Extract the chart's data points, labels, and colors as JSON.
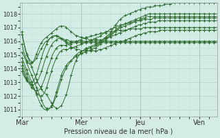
{
  "xlabel": "Pression niveau de la mer( hPa )",
  "bg_color": "#d4ece6",
  "grid_color": "#b0d4cc",
  "line_color": "#2d6b2d",
  "marker": "+",
  "ylim": [
    1010.5,
    1018.8
  ],
  "yticks": [
    1011,
    1012,
    1013,
    1014,
    1015,
    1016,
    1017,
    1018
  ],
  "day_labels": [
    "Mar",
    "Mer",
    "Jeu",
    "Ven"
  ],
  "day_positions": [
    0,
    36,
    72,
    108
  ],
  "n_points": 120,
  "lines": [
    [
      1016.7,
      1016.0,
      1015.4,
      1015.0,
      1014.7,
      1014.4,
      1014.1,
      1013.8,
      1013.5,
      1013.2,
      1012.9,
      1012.7,
      1012.5,
      1012.3,
      1012.2,
      1012.1,
      1011.9,
      1011.7,
      1011.5,
      1011.3,
      1011.2,
      1011.1,
      1011.1,
      1011.2,
      1011.3,
      1011.5,
      1011.8,
      1012.1,
      1012.5,
      1013.0,
      1013.5,
      1013.9,
      1014.3,
      1014.6,
      1014.8,
      1015.0,
      1015.2,
      1015.3,
      1015.4,
      1015.5,
      1015.5,
      1015.6,
      1015.6,
      1015.7,
      1015.7,
      1015.8,
      1015.8,
      1015.9,
      1016.0,
      1016.1,
      1016.2,
      1016.3,
      1016.4,
      1016.5,
      1016.6,
      1016.8,
      1017.0,
      1017.2,
      1017.3,
      1017.5,
      1017.6,
      1017.7,
      1017.8,
      1017.9,
      1017.9,
      1018.0,
      1018.0,
      1018.1,
      1018.1,
      1018.2,
      1018.2,
      1018.3,
      1018.3,
      1018.4,
      1018.4,
      1018.4,
      1018.5,
      1018.5,
      1018.5,
      1018.5,
      1018.5,
      1018.6,
      1018.6,
      1018.6,
      1018.6,
      1018.6,
      1018.6,
      1018.7,
      1018.7,
      1018.7,
      1018.7,
      1018.7,
      1018.8,
      1018.8,
      1018.8,
      1018.8,
      1018.8,
      1018.8,
      1018.8,
      1018.8,
      1018.8,
      1018.8,
      1018.8,
      1018.8,
      1018.8,
      1018.8,
      1018.8,
      1018.8,
      1018.8,
      1018.8,
      1018.8,
      1018.8,
      1018.8,
      1018.8,
      1018.8,
      1018.8,
      1018.8,
      1018.8,
      1018.8,
      1018.8
    ],
    [
      1015.2,
      1015.0,
      1014.7,
      1014.4,
      1014.1,
      1013.8,
      1013.5,
      1013.2,
      1012.9,
      1012.6,
      1012.3,
      1012.0,
      1011.7,
      1011.4,
      1011.2,
      1011.1,
      1011.1,
      1011.1,
      1011.2,
      1011.4,
      1011.7,
      1012.0,
      1012.4,
      1012.8,
      1013.2,
      1013.5,
      1013.8,
      1014.0,
      1014.2,
      1014.4,
      1014.6,
      1014.7,
      1014.9,
      1015.0,
      1015.1,
      1015.2,
      1015.2,
      1015.3,
      1015.3,
      1015.4,
      1015.4,
      1015.5,
      1015.5,
      1015.6,
      1015.6,
      1015.7,
      1015.7,
      1015.8,
      1015.9,
      1016.0,
      1016.1,
      1016.2,
      1016.3,
      1016.4,
      1016.5,
      1016.6,
      1016.7,
      1016.8,
      1016.9,
      1017.0,
      1017.1,
      1017.2,
      1017.2,
      1017.3,
      1017.3,
      1017.4,
      1017.4,
      1017.5,
      1017.5,
      1017.6,
      1017.6,
      1017.7,
      1017.7,
      1017.8,
      1017.8,
      1017.9,
      1017.9,
      1018.0,
      1018.0,
      1018.0,
      1018.0,
      1018.0,
      1018.0,
      1018.0,
      1018.0,
      1018.0,
      1018.0,
      1018.0,
      1018.0,
      1018.0,
      1018.0,
      1018.0,
      1018.0,
      1018.0,
      1018.0,
      1018.0,
      1018.0,
      1018.0,
      1018.0,
      1018.0,
      1018.0,
      1018.0,
      1018.0,
      1018.0,
      1018.0,
      1018.0,
      1018.0,
      1018.0,
      1018.0,
      1018.0,
      1018.0,
      1018.0,
      1018.0,
      1018.0,
      1018.0,
      1018.0,
      1018.0,
      1018.0,
      1018.0,
      1018.0
    ],
    [
      1014.8,
      1014.5,
      1014.2,
      1013.9,
      1013.6,
      1013.3,
      1013.0,
      1012.7,
      1012.4,
      1012.1,
      1011.8,
      1011.5,
      1011.3,
      1011.1,
      1011.0,
      1011.0,
      1011.0,
      1011.1,
      1011.3,
      1011.5,
      1011.9,
      1012.3,
      1012.7,
      1013.1,
      1013.5,
      1013.8,
      1014.0,
      1014.2,
      1014.4,
      1014.5,
      1014.6,
      1014.7,
      1014.8,
      1014.9,
      1015.0,
      1015.0,
      1015.1,
      1015.1,
      1015.2,
      1015.2,
      1015.3,
      1015.3,
      1015.4,
      1015.4,
      1015.5,
      1015.5,
      1015.6,
      1015.7,
      1015.8,
      1015.9,
      1016.0,
      1016.1,
      1016.2,
      1016.3,
      1016.4,
      1016.5,
      1016.6,
      1016.7,
      1016.8,
      1016.9,
      1017.0,
      1017.0,
      1017.1,
      1017.1,
      1017.2,
      1017.2,
      1017.3,
      1017.3,
      1017.4,
      1017.4,
      1017.5,
      1017.5,
      1017.6,
      1017.6,
      1017.7,
      1017.7,
      1017.8,
      1017.8,
      1017.8,
      1017.8,
      1017.8,
      1017.8,
      1017.8,
      1017.8,
      1017.8,
      1017.8,
      1017.8,
      1017.8,
      1017.8,
      1017.8,
      1017.8,
      1017.8,
      1017.8,
      1017.8,
      1017.8,
      1017.8,
      1017.8,
      1017.8,
      1017.8,
      1017.8,
      1017.8,
      1017.8,
      1017.8,
      1017.8,
      1017.8,
      1017.8,
      1017.8,
      1017.8,
      1017.8,
      1017.8,
      1017.8,
      1017.8,
      1017.8,
      1017.8,
      1017.8,
      1017.8,
      1017.8,
      1017.8,
      1017.8,
      1017.8
    ],
    [
      1014.5,
      1014.2,
      1013.9,
      1013.6,
      1013.3,
      1013.0,
      1012.8,
      1012.6,
      1012.4,
      1012.2,
      1012.1,
      1012.0,
      1012.0,
      1012.1,
      1012.3,
      1012.6,
      1013.0,
      1013.4,
      1013.8,
      1014.2,
      1014.5,
      1014.8,
      1015.0,
      1015.2,
      1015.3,
      1015.4,
      1015.4,
      1015.4,
      1015.4,
      1015.5,
      1015.5,
      1015.5,
      1015.6,
      1015.6,
      1015.7,
      1015.7,
      1015.8,
      1015.8,
      1015.9,
      1015.9,
      1016.0,
      1016.0,
      1016.1,
      1016.1,
      1016.2,
      1016.2,
      1016.3,
      1016.3,
      1016.4,
      1016.5,
      1016.6,
      1016.7,
      1016.7,
      1016.8,
      1016.9,
      1016.9,
      1017.0,
      1017.0,
      1017.1,
      1017.1,
      1017.2,
      1017.2,
      1017.2,
      1017.3,
      1017.3,
      1017.3,
      1017.4,
      1017.4,
      1017.4,
      1017.5,
      1017.5,
      1017.5,
      1017.5,
      1017.5,
      1017.6,
      1017.6,
      1017.6,
      1017.6,
      1017.6,
      1017.6,
      1017.7,
      1017.7,
      1017.7,
      1017.7,
      1017.7,
      1017.7,
      1017.7,
      1017.7,
      1017.7,
      1017.7,
      1017.7,
      1017.7,
      1017.7,
      1017.7,
      1017.7,
      1017.7,
      1017.7,
      1017.7,
      1017.7,
      1017.7,
      1017.7,
      1017.7,
      1017.7,
      1017.7,
      1017.7,
      1017.7,
      1017.7,
      1017.7,
      1017.7,
      1017.7,
      1017.7,
      1017.7,
      1017.7,
      1017.7,
      1017.7,
      1017.7,
      1017.7,
      1017.7,
      1017.7,
      1017.7
    ],
    [
      1014.2,
      1013.9,
      1013.6,
      1013.3,
      1013.0,
      1012.8,
      1012.6,
      1012.5,
      1012.4,
      1012.4,
      1012.4,
      1012.5,
      1012.7,
      1013.0,
      1013.3,
      1013.7,
      1014.1,
      1014.4,
      1014.8,
      1015.1,
      1015.3,
      1015.5,
      1015.6,
      1015.7,
      1015.7,
      1015.7,
      1015.7,
      1015.7,
      1015.8,
      1015.8,
      1015.8,
      1015.9,
      1015.9,
      1016.0,
      1016.0,
      1016.1,
      1016.1,
      1016.2,
      1016.2,
      1016.3,
      1016.3,
      1016.3,
      1016.4,
      1016.4,
      1016.4,
      1016.5,
      1016.5,
      1016.5,
      1016.6,
      1016.6,
      1016.6,
      1016.6,
      1016.7,
      1016.7,
      1016.7,
      1016.7,
      1016.7,
      1016.8,
      1016.8,
      1016.8,
      1016.8,
      1016.8,
      1016.8,
      1016.8,
      1016.8,
      1016.9,
      1016.9,
      1016.9,
      1016.9,
      1016.9,
      1016.9,
      1016.9,
      1016.9,
      1016.9,
      1017.0,
      1017.0,
      1017.0,
      1017.0,
      1017.0,
      1017.0,
      1017.0,
      1017.0,
      1017.0,
      1017.0,
      1017.0,
      1017.0,
      1017.0,
      1017.0,
      1017.0,
      1017.0,
      1017.0,
      1017.0,
      1017.0,
      1017.0,
      1017.0,
      1017.0,
      1017.0,
      1017.0,
      1017.0,
      1017.0,
      1017.0,
      1017.0,
      1017.0,
      1017.0,
      1017.0,
      1017.0,
      1017.0,
      1017.0,
      1017.0,
      1017.0,
      1017.0,
      1017.0,
      1017.0,
      1017.0,
      1017.0,
      1017.0,
      1017.0,
      1017.0,
      1017.0,
      1017.0
    ],
    [
      1014.0,
      1013.7,
      1013.4,
      1013.2,
      1013.0,
      1012.9,
      1012.8,
      1012.8,
      1012.9,
      1013.0,
      1013.2,
      1013.5,
      1013.8,
      1014.2,
      1014.6,
      1014.9,
      1015.2,
      1015.5,
      1015.7,
      1015.9,
      1016.0,
      1016.1,
      1016.2,
      1016.2,
      1016.2,
      1016.2,
      1016.1,
      1016.1,
      1016.1,
      1016.0,
      1016.0,
      1016.0,
      1016.0,
      1016.0,
      1016.0,
      1016.0,
      1016.0,
      1016.0,
      1016.0,
      1016.0,
      1016.0,
      1016.0,
      1016.0,
      1016.0,
      1016.0,
      1016.0,
      1016.0,
      1016.0,
      1016.0,
      1016.0,
      1016.0,
      1016.0,
      1016.0,
      1016.0,
      1016.0,
      1016.0,
      1016.0,
      1016.0,
      1016.0,
      1016.0,
      1016.0,
      1016.0,
      1016.0,
      1016.0,
      1016.0,
      1016.0,
      1016.0,
      1016.0,
      1016.0,
      1016.0,
      1016.0,
      1016.0,
      1016.0,
      1016.0,
      1016.0,
      1016.0,
      1016.0,
      1016.0,
      1016.0,
      1016.0,
      1016.0,
      1016.0,
      1016.0,
      1016.0,
      1016.0,
      1016.0,
      1016.0,
      1016.0,
      1016.0,
      1016.0,
      1016.0,
      1016.0,
      1016.0,
      1016.0,
      1016.0,
      1016.0,
      1016.0,
      1016.0,
      1016.0,
      1016.0,
      1016.0,
      1016.0,
      1016.0,
      1016.0,
      1016.0,
      1016.0,
      1016.0,
      1016.0,
      1016.0,
      1016.0,
      1016.0,
      1016.0,
      1016.0,
      1016.0,
      1016.0,
      1016.0,
      1016.0,
      1016.0,
      1016.0,
      1016.0
    ],
    [
      1013.8,
      1013.5,
      1013.3,
      1013.1,
      1013.0,
      1013.0,
      1013.0,
      1013.1,
      1013.3,
      1013.6,
      1014.0,
      1014.4,
      1014.8,
      1015.2,
      1015.5,
      1015.8,
      1016.0,
      1016.2,
      1016.3,
      1016.4,
      1016.4,
      1016.4,
      1016.4,
      1016.3,
      1016.2,
      1016.1,
      1016.0,
      1016.0,
      1015.9,
      1015.9,
      1015.9,
      1015.9,
      1015.9,
      1015.9,
      1015.9,
      1015.9,
      1015.9,
      1015.9,
      1015.9,
      1015.9,
      1015.9,
      1015.9,
      1015.9,
      1015.9,
      1015.9,
      1015.9,
      1015.9,
      1015.9,
      1015.9,
      1015.9,
      1015.9,
      1015.9,
      1015.9,
      1015.9,
      1015.9,
      1015.9,
      1015.9,
      1015.9,
      1015.9,
      1015.9,
      1015.9,
      1015.9,
      1015.9,
      1015.9,
      1015.9,
      1015.9,
      1015.9,
      1015.9,
      1015.9,
      1015.9,
      1015.9,
      1015.9,
      1015.9,
      1015.9,
      1015.9,
      1015.9,
      1015.9,
      1015.9,
      1015.9,
      1015.9,
      1015.9,
      1015.9,
      1015.9,
      1015.9,
      1015.9,
      1015.9,
      1015.9,
      1015.9,
      1015.9,
      1015.9,
      1015.9,
      1015.9,
      1015.9,
      1015.9,
      1015.9,
      1015.9,
      1015.9,
      1015.9,
      1015.9,
      1015.9,
      1015.9,
      1015.9,
      1015.9,
      1015.9,
      1015.9,
      1015.9,
      1015.9,
      1015.9,
      1015.9,
      1015.9,
      1015.9,
      1015.9,
      1015.9,
      1015.9,
      1015.9,
      1015.9,
      1015.9,
      1015.9,
      1015.9,
      1015.9
    ],
    [
      1016.5,
      1016.0,
      1015.5,
      1015.1,
      1014.8,
      1014.6,
      1014.5,
      1014.5,
      1014.6,
      1014.8,
      1015.0,
      1015.3,
      1015.5,
      1015.7,
      1015.9,
      1016.0,
      1016.1,
      1016.2,
      1016.3,
      1016.3,
      1016.4,
      1016.4,
      1016.3,
      1016.3,
      1016.2,
      1016.1,
      1016.0,
      1015.9,
      1015.8,
      1015.7,
      1015.6,
      1015.5,
      1015.5,
      1015.4,
      1015.4,
      1015.4,
      1015.3,
      1015.3,
      1015.3,
      1015.3,
      1015.3,
      1015.3,
      1015.3,
      1015.3,
      1015.3,
      1015.3,
      1015.3,
      1015.4,
      1015.4,
      1015.4,
      1015.5,
      1015.5,
      1015.6,
      1015.6,
      1015.7,
      1015.7,
      1015.8,
      1015.8,
      1015.9,
      1015.9,
      1016.0,
      1016.0,
      1016.0,
      1016.1,
      1016.1,
      1016.2,
      1016.2,
      1016.3,
      1016.3,
      1016.4,
      1016.4,
      1016.5,
      1016.5,
      1016.5,
      1016.6,
      1016.6,
      1016.6,
      1016.7,
      1016.7,
      1016.7,
      1016.7,
      1016.7,
      1016.7,
      1016.7,
      1016.8,
      1016.8,
      1016.8,
      1016.8,
      1016.8,
      1016.8,
      1016.8,
      1016.8,
      1016.8,
      1016.8,
      1016.8,
      1016.8,
      1016.8,
      1016.8,
      1016.8,
      1016.8,
      1016.8,
      1016.8,
      1016.8,
      1016.8,
      1016.8,
      1016.8,
      1016.8,
      1016.8,
      1016.8,
      1016.8,
      1016.8,
      1016.8,
      1016.8,
      1016.8,
      1016.8,
      1016.8,
      1016.8,
      1016.8,
      1016.8,
      1016.8
    ],
    [
      1015.8,
      1015.3,
      1014.9,
      1014.6,
      1014.4,
      1014.3,
      1014.4,
      1014.5,
      1014.8,
      1015.1,
      1015.4,
      1015.7,
      1015.9,
      1016.1,
      1016.2,
      1016.3,
      1016.4,
      1016.5,
      1016.6,
      1016.7,
      1016.8,
      1016.9,
      1017.0,
      1017.1,
      1017.1,
      1017.1,
      1017.1,
      1017.0,
      1016.9,
      1016.8,
      1016.7,
      1016.6,
      1016.5,
      1016.4,
      1016.4,
      1016.3,
      1016.3,
      1016.3,
      1016.2,
      1016.2,
      1016.2,
      1016.1,
      1016.1,
      1016.1,
      1016.1,
      1016.1,
      1016.1,
      1016.1,
      1016.1,
      1016.1,
      1016.2,
      1016.2,
      1016.2,
      1016.3,
      1016.3,
      1016.4,
      1016.4,
      1016.5,
      1016.5,
      1016.6,
      1016.6,
      1016.7,
      1016.7,
      1016.8,
      1016.8,
      1016.9,
      1016.9,
      1017.0,
      1017.0,
      1017.1,
      1017.1,
      1017.2,
      1017.2,
      1017.2,
      1017.3,
      1017.3,
      1017.3,
      1017.4,
      1017.4,
      1017.4,
      1017.4,
      1017.4,
      1017.4,
      1017.5,
      1017.5,
      1017.5,
      1017.5,
      1017.5,
      1017.5,
      1017.5,
      1017.5,
      1017.5,
      1017.5,
      1017.5,
      1017.5,
      1017.5,
      1017.5,
      1017.5,
      1017.5,
      1017.5,
      1017.5,
      1017.5,
      1017.5,
      1017.5,
      1017.5,
      1017.5,
      1017.5,
      1017.5,
      1017.5,
      1017.5,
      1017.5,
      1017.5,
      1017.5,
      1017.5,
      1017.5,
      1017.5,
      1017.5,
      1017.5,
      1017.5,
      1017.5
    ]
  ]
}
